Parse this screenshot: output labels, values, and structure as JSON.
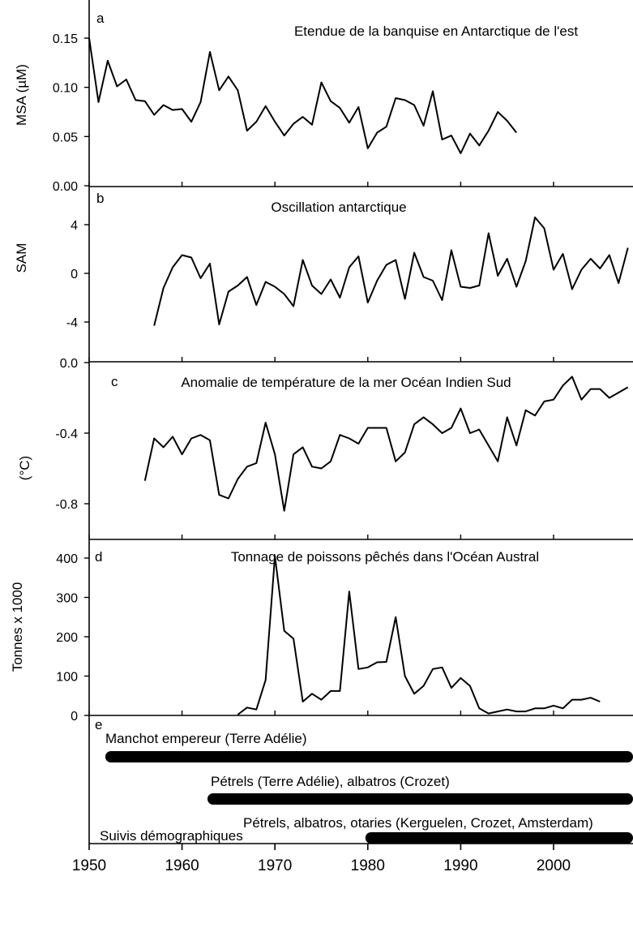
{
  "chart_data": [
    {
      "type": "line",
      "panel_letter": "a",
      "title": "Etendue de la banquise en Antarctique de l'est",
      "ylabel": "MSA (µM)",
      "ylim": [
        0,
        0.17
      ],
      "yticks": [
        "0.00",
        "0.05",
        "0.10",
        "0.15"
      ],
      "ytick_values": [
        0,
        0.05,
        0.1,
        0.15
      ],
      "x": [
        1950,
        1951,
        1952,
        1953,
        1954,
        1955,
        1956,
        1957,
        1958,
        1959,
        1960,
        1961,
        1962,
        1963,
        1964,
        1965,
        1966,
        1967,
        1968,
        1969,
        1970,
        1971,
        1972,
        1973,
        1974,
        1975,
        1976,
        1977,
        1978,
        1979,
        1980,
        1981,
        1982,
        1983,
        1984,
        1985,
        1986,
        1987,
        1988,
        1989,
        1990,
        1991,
        1992,
        1993,
        1994,
        1995,
        1996
      ],
      "values": [
        0.15,
        0.085,
        0.127,
        0.101,
        0.108,
        0.087,
        0.086,
        0.072,
        0.082,
        0.077,
        0.078,
        0.065,
        0.085,
        0.136,
        0.097,
        0.111,
        0.097,
        0.056,
        0.065,
        0.081,
        0.065,
        0.051,
        0.063,
        0.07,
        0.062,
        0.105,
        0.086,
        0.079,
        0.064,
        0.08,
        0.038,
        0.054,
        0.06,
        0.089,
        0.087,
        0.082,
        0.061,
        0.096,
        0.047,
        0.051,
        0.033,
        0.053,
        0.041,
        0.056,
        0.075,
        0.066,
        0.054
      ]
    },
    {
      "type": "line",
      "panel_letter": "b",
      "title": "Oscillation antarctique",
      "ylabel": "SAM",
      "ylim": [
        -8,
        6
      ],
      "yticks": [
        "-4",
        "0",
        "4"
      ],
      "ytick_values": [
        -4,
        0,
        4
      ],
      "x": [
        1957,
        1958,
        1959,
        1960,
        1961,
        1962,
        1963,
        1964,
        1965,
        1966,
        1967,
        1968,
        1969,
        1970,
        1971,
        1972,
        1973,
        1974,
        1975,
        1976,
        1977,
        1978,
        1979,
        1980,
        1981,
        1982,
        1983,
        1984,
        1985,
        1986,
        1987,
        1988,
        1989,
        1990,
        1991,
        1992,
        1993,
        1994,
        1995,
        1996,
        1997,
        1998,
        1999,
        2000,
        2001,
        2002,
        2003,
        2004,
        2005,
        2006,
        2007,
        2008
      ],
      "values": [
        -4.3,
        -1.2,
        0.5,
        1.5,
        1.3,
        -0.4,
        0.8,
        -4.2,
        -1.5,
        -1.0,
        -0.3,
        -2.6,
        -0.7,
        -1.1,
        -1.7,
        -2.7,
        1.1,
        -1.0,
        -1.7,
        -0.5,
        -2.0,
        0.5,
        1.4,
        -2.4,
        -0.6,
        0.7,
        1.1,
        -2.1,
        1.7,
        -0.3,
        -0.6,
        -2.2,
        1.9,
        -1.1,
        -1.2,
        -1.0,
        3.3,
        -0.2,
        1.2,
        -1.1,
        1.0,
        4.6,
        3.7,
        0.3,
        1.6,
        -1.3,
        0.3,
        1.2,
        0.4,
        1.5,
        -0.8,
        2.1
      ]
    },
    {
      "type": "line",
      "panel_letter": "c",
      "title": "Anomalie de température de la mer Océan Indien Sud",
      "ylabel": "(°C)",
      "ylim": [
        -0.95,
        0.0
      ],
      "yticks": [
        "-0.8",
        "-0.4",
        "0.0"
      ],
      "ytick_values": [
        -0.8,
        -0.4,
        0.0
      ],
      "x": [
        1956,
        1957,
        1958,
        1959,
        1960,
        1961,
        1962,
        1963,
        1964,
        1965,
        1966,
        1967,
        1968,
        1969,
        1970,
        1971,
        1972,
        1973,
        1974,
        1975,
        1976,
        1977,
        1978,
        1979,
        1980,
        1981,
        1982,
        1983,
        1984,
        1985,
        1986,
        1987,
        1988,
        1989,
        1990,
        1991,
        1992,
        1993,
        1994,
        1995,
        1996,
        1997,
        1998,
        1999,
        2000,
        2001,
        2002,
        2003,
        2004,
        2005,
        2006,
        2007,
        2008
      ],
      "values": [
        -0.67,
        -0.43,
        -0.48,
        -0.42,
        -0.52,
        -0.43,
        -0.41,
        -0.44,
        -0.75,
        -0.77,
        -0.66,
        -0.59,
        -0.57,
        -0.34,
        -0.52,
        -0.84,
        -0.52,
        -0.48,
        -0.59,
        -0.6,
        -0.56,
        -0.41,
        -0.43,
        -0.46,
        -0.37,
        -0.37,
        -0.37,
        -0.56,
        -0.51,
        -0.35,
        -0.31,
        -0.35,
        -0.4,
        -0.37,
        -0.26,
        -0.4,
        -0.38,
        -0.47,
        -0.56,
        -0.31,
        -0.47,
        -0.27,
        -0.3,
        -0.22,
        -0.21,
        -0.13,
        -0.08,
        -0.21,
        -0.15,
        -0.15,
        -0.2,
        -0.17,
        -0.14
      ]
    },
    {
      "type": "line",
      "panel_letter": "d",
      "title": "Tonnage de poissons pêchés dans l'Océan Austral",
      "ylabel": "Tonnes x 1000",
      "ylim": [
        0,
        430
      ],
      "yticks": [
        "0",
        "100",
        "200",
        "300",
        "400"
      ],
      "ytick_values": [
        0,
        100,
        200,
        300,
        400
      ],
      "x": [
        1966,
        1967,
        1968,
        1969,
        1970,
        1971,
        1972,
        1973,
        1974,
        1975,
        1976,
        1977,
        1978,
        1979,
        1980,
        1981,
        1982,
        1983,
        1984,
        1985,
        1986,
        1987,
        1988,
        1989,
        1990,
        1991,
        1992,
        1993,
        1994,
        1995,
        1996,
        1997,
        1998,
        1999,
        2000,
        2001,
        2002,
        2003,
        2004,
        2005
      ],
      "values": [
        2,
        20,
        15,
        90,
        405,
        215,
        195,
        35,
        55,
        40,
        62,
        62,
        315,
        118,
        122,
        135,
        136,
        250,
        100,
        55,
        75,
        118,
        122,
        70,
        95,
        75,
        18,
        5,
        10,
        15,
        10,
        10,
        18,
        18,
        25,
        18,
        40,
        40,
        45,
        35
      ]
    }
  ],
  "timeline": {
    "panel_letter": "e",
    "footer": "Suivis démographiques",
    "bars": [
      {
        "label": "Manchot empereur (Terre Adélie)",
        "start": 1952
      },
      {
        "label": "Pétrels (Terre Adélie), albatros (Crozet)",
        "start": 1963
      },
      {
        "label": "Pétrels, albatros, otaries (Kerguelen, Crozet, Amsterdam)",
        "start": 1980
      }
    ]
  },
  "x_axis": {
    "xlim": [
      1950,
      2010
    ],
    "ticks": [
      1950,
      1960,
      1970,
      1980,
      1990,
      2000
    ],
    "tick_labels": [
      "1950",
      "1960",
      "1970",
      "1980",
      "1990",
      "2000"
    ]
  }
}
